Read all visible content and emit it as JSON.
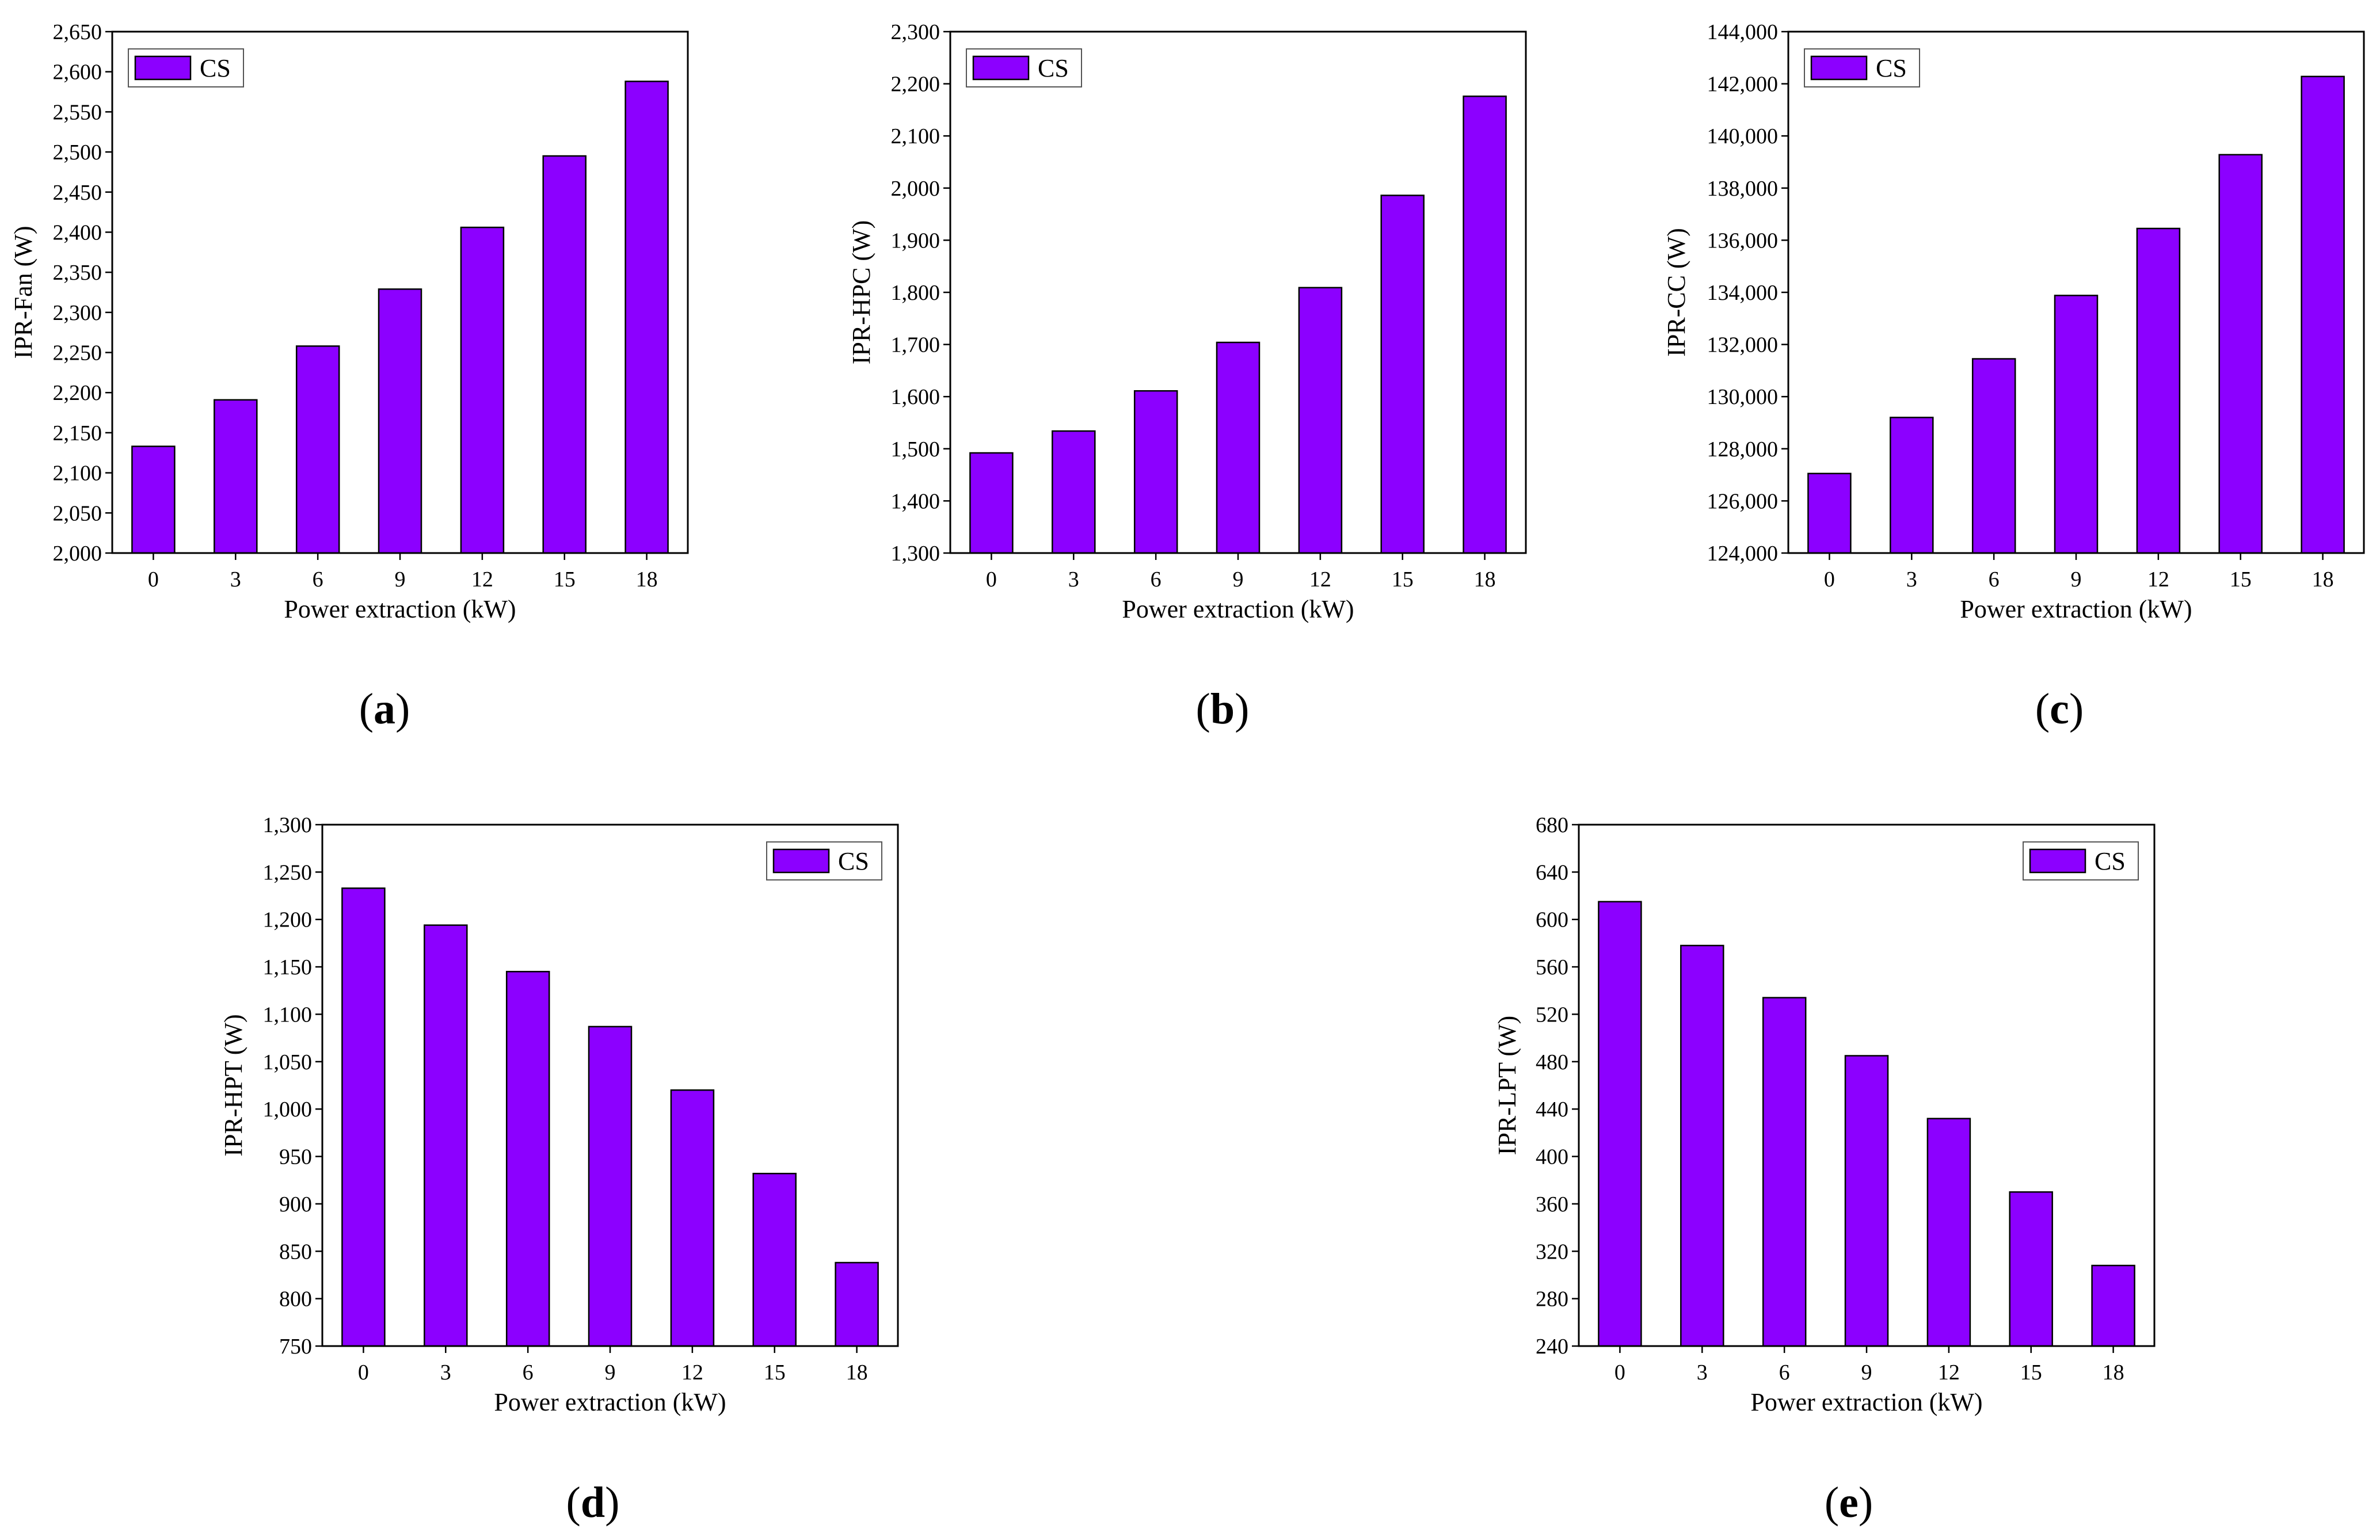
{
  "chart_data": [
    {
      "panel": "a",
      "type": "bar",
      "xlabel": "Power extraction (kW)",
      "ylabel": "IPR-Fan (W)",
      "categories": [
        "0",
        "3",
        "6",
        "9",
        "12",
        "15",
        "18"
      ],
      "series": [
        {
          "name": "CS",
          "values": [
            2133,
            2191,
            2258,
            2329,
            2406,
            2495,
            2588
          ]
        }
      ],
      "ylim": [
        2000,
        2650
      ],
      "yticks": [
        2000,
        2050,
        2100,
        2150,
        2200,
        2250,
        2300,
        2350,
        2400,
        2450,
        2500,
        2550,
        2600,
        2650
      ],
      "ytick_labels": [
        "2,000",
        "2,050",
        "2,100",
        "2,150",
        "2,200",
        "2,250",
        "2,300",
        "2,350",
        "2,400",
        "2,450",
        "2,500",
        "2,550",
        "2,600",
        "2,650"
      ],
      "legend_position": "top-left"
    },
    {
      "panel": "b",
      "type": "bar",
      "xlabel": "Power extraction (kW)",
      "ylabel": "IPR-HPC (W)",
      "categories": [
        "0",
        "3",
        "6",
        "9",
        "12",
        "15",
        "18"
      ],
      "series": [
        {
          "name": "CS",
          "values": [
            1492,
            1534,
            1611,
            1704,
            1809,
            1986,
            2176
          ]
        }
      ],
      "ylim": [
        1300,
        2300
      ],
      "yticks": [
        1300,
        1400,
        1500,
        1600,
        1700,
        1800,
        1900,
        2000,
        2100,
        2200,
        2300
      ],
      "ytick_labels": [
        "1,300",
        "1,400",
        "1,500",
        "1,600",
        "1,700",
        "1,800",
        "1,900",
        "2,000",
        "2,100",
        "2,200",
        "2,300"
      ],
      "legend_position": "top-left"
    },
    {
      "panel": "c",
      "type": "bar",
      "xlabel": "Power extraction (kW)",
      "ylabel": "IPR-CC (W)",
      "categories": [
        "0",
        "3",
        "6",
        "9",
        "12",
        "15",
        "18"
      ],
      "series": [
        {
          "name": "CS",
          "values": [
            127050,
            129200,
            131450,
            133880,
            136450,
            139280,
            142280
          ]
        }
      ],
      "ylim": [
        124000,
        144000
      ],
      "yticks": [
        124000,
        126000,
        128000,
        130000,
        132000,
        134000,
        136000,
        138000,
        140000,
        142000,
        144000
      ],
      "ytick_labels": [
        "124,000",
        "126,000",
        "128,000",
        "130,000",
        "132,000",
        "134,000",
        "136,000",
        "138,000",
        "140,000",
        "142,000",
        "144,000"
      ],
      "legend_position": "top-left"
    },
    {
      "panel": "d",
      "type": "bar",
      "xlabel": "Power extraction (kW)",
      "ylabel": "IPR-HPT (W)",
      "categories": [
        "0",
        "3",
        "6",
        "9",
        "12",
        "15",
        "18"
      ],
      "series": [
        {
          "name": "CS",
          "values": [
            1233,
            1194,
            1145,
            1087,
            1020,
            932,
            838
          ]
        }
      ],
      "ylim": [
        750,
        1300
      ],
      "yticks": [
        750,
        800,
        850,
        900,
        950,
        1000,
        1050,
        1100,
        1150,
        1200,
        1250,
        1300
      ],
      "ytick_labels": [
        "750",
        "800",
        "850",
        "900",
        "950",
        "1,000",
        "1,050",
        "1,100",
        "1,150",
        "1,200",
        "1,250",
        "1,300"
      ],
      "legend_position": "top-right"
    },
    {
      "panel": "e",
      "type": "bar",
      "xlabel": "Power extraction (kW)",
      "ylabel": "IPR-LPT (W)",
      "categories": [
        "0",
        "3",
        "6",
        "9",
        "12",
        "15",
        "18"
      ],
      "series": [
        {
          "name": "CS",
          "values": [
            615,
            578,
            534,
            485,
            432,
            370,
            308
          ]
        }
      ],
      "ylim": [
        240,
        680
      ],
      "yticks": [
        240,
        280,
        320,
        360,
        400,
        440,
        480,
        520,
        560,
        600,
        640,
        680
      ],
      "ytick_labels": [
        "240",
        "280",
        "320",
        "360",
        "400",
        "440",
        "480",
        "520",
        "560",
        "600",
        "640",
        "680"
      ],
      "legend_position": "top-right"
    }
  ],
  "panel_labels": [
    {
      "letter": "a",
      "open": "(",
      "close": ")"
    },
    {
      "letter": "b",
      "open": "(",
      "close": ")"
    },
    {
      "letter": "c",
      "open": "(",
      "close": ")"
    },
    {
      "letter": "d",
      "open": "(",
      "close": ")"
    },
    {
      "letter": "e",
      "open": "(",
      "close": ")"
    }
  ],
  "colors": {
    "bar_fill": "#8c00ff",
    "bar_stroke": "#000000",
    "axis": "#000000"
  }
}
